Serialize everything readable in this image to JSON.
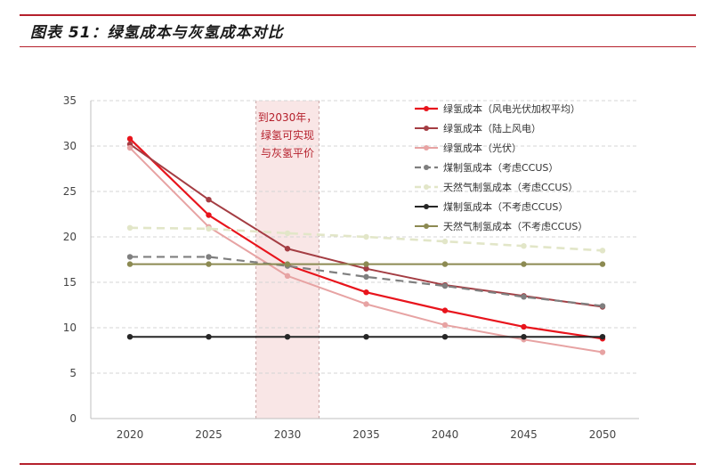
{
  "figure": {
    "title": "图表 51：绿氢成本与灰氢成本对比"
  },
  "colors": {
    "accent": "#b5202c"
  },
  "chart_data": {
    "type": "line",
    "x": [
      2020,
      2025,
      2030,
      2035,
      2040,
      2045,
      2050
    ],
    "ylim": [
      0,
      35
    ],
    "yticks": [
      0,
      5,
      10,
      15,
      20,
      25,
      30,
      35
    ],
    "grid": true,
    "legend_position": "top-right",
    "annotation": {
      "lines": [
        "到2030年，",
        "绿氢可实现",
        "与灰氢平价"
      ],
      "span": [
        2028,
        2032
      ]
    },
    "series": [
      {
        "name": "绿氢成本（风电光伏加权平均）",
        "color": "#e8141c",
        "dash": false,
        "width": 2.2,
        "values": [
          30.8,
          22.4,
          16.9,
          13.9,
          11.9,
          10.1,
          8.8
        ]
      },
      {
        "name": "绿氢成本（陆上风电）",
        "color": "#a43d43",
        "dash": false,
        "width": 2,
        "values": [
          30.2,
          24.1,
          18.7,
          16.5,
          14.7,
          13.5,
          12.3
        ]
      },
      {
        "name": "绿氢成本（光伏）",
        "color": "#e7a3a3",
        "dash": false,
        "width": 2,
        "values": [
          29.8,
          21.1,
          15.7,
          12.6,
          10.3,
          8.7,
          7.3
        ]
      },
      {
        "name": "煤制氢成本（考虑CCUS）",
        "color": "#7f7f7f",
        "dash": true,
        "width": 2.2,
        "values": [
          17.8,
          17.8,
          16.8,
          15.6,
          14.6,
          13.4,
          12.4
        ]
      },
      {
        "name": "天然气制氢成本（考虑CCUS）",
        "color": "#e2e6c8",
        "dash": true,
        "width": 2.6,
        "values": [
          21.0,
          20.9,
          20.4,
          20.0,
          19.5,
          19.0,
          18.5
        ]
      },
      {
        "name": "煤制氢成本（不考虑CCUS）",
        "color": "#262626",
        "dash": false,
        "width": 2,
        "values": [
          9.0,
          9.0,
          9.0,
          9.0,
          9.0,
          9.0,
          9.0
        ]
      },
      {
        "name": "天然气制氢成本（不考虑CCUS）",
        "color": "#8c8a52",
        "dash": false,
        "width": 2,
        "values": [
          17.0,
          17.0,
          17.0,
          17.0,
          17.0,
          17.0,
          17.0
        ]
      }
    ]
  }
}
